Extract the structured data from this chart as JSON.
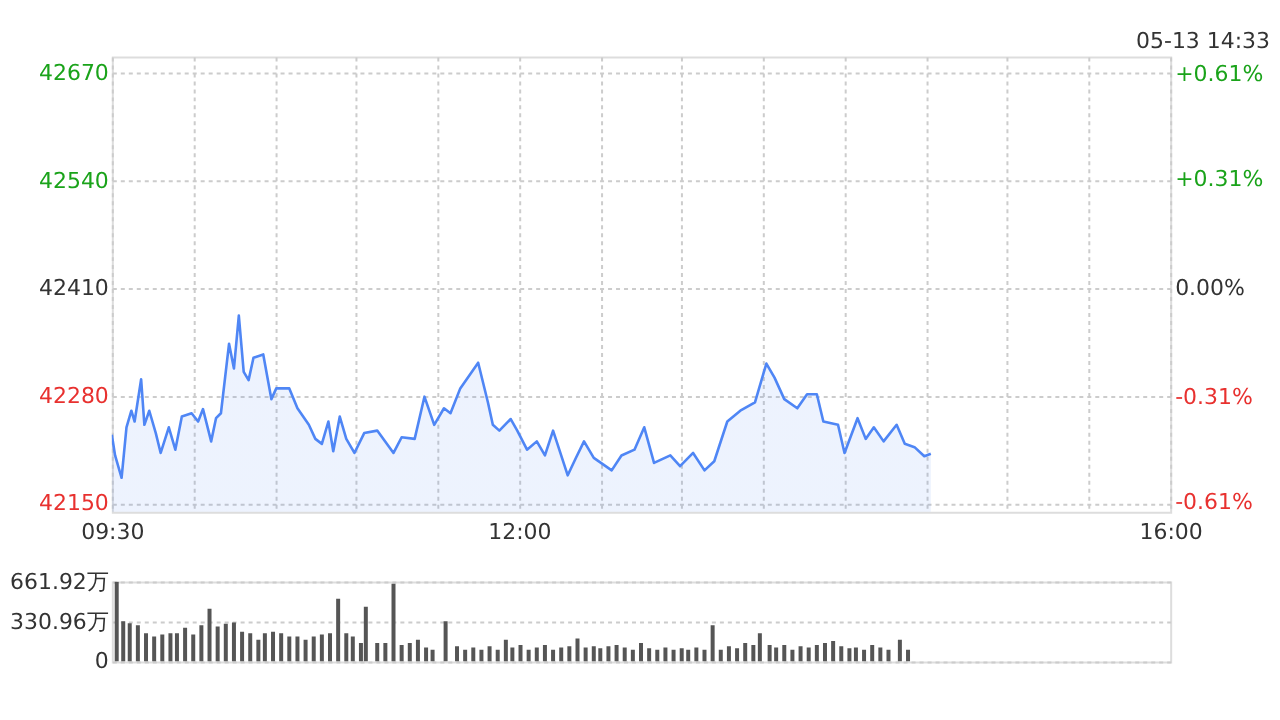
{
  "chart_data": [
    {
      "type": "area",
      "annotations": [
        "05-13 14:33"
      ],
      "xlim": [
        9.5,
        16
      ],
      "xticks": [
        {
          "value": 9.5,
          "label": "09:30"
        },
        {
          "value": 10,
          "label": null
        },
        {
          "value": 10.5,
          "label": null
        },
        {
          "value": 11,
          "label": null
        },
        {
          "value": 11.5,
          "label": null
        },
        {
          "value": 12,
          "label": "12:00"
        },
        {
          "value": 12.5,
          "label": null
        },
        {
          "value": 13,
          "label": null
        },
        {
          "value": 13.5,
          "label": null
        },
        {
          "value": 14,
          "label": null
        },
        {
          "value": 14.5,
          "label": null
        },
        {
          "value": 15,
          "label": null
        },
        {
          "value": 15.5,
          "label": null
        },
        {
          "value": 16,
          "label": "16:00"
        }
      ],
      "ylim": [
        42140,
        42690
      ],
      "yticks": [
        42150,
        42280,
        42410,
        42540,
        42670
      ],
      "y2lim": [
        -0.637,
        0.66
      ],
      "y2ticks": [
        {
          "value": -0.61,
          "label": "-0.61%"
        },
        {
          "value": -0.31,
          "label": "-0.31%"
        },
        {
          "value": 0,
          "label": "0.00%"
        },
        {
          "value": 0.31,
          "label": "+0.31%"
        },
        {
          "value": 0.61,
          "label": "+0.61%"
        }
      ],
      "grid": true,
      "series": [
        {
          "color": "#4f86f5",
          "x": [
            9.5,
            9.52,
            9.56,
            9.59,
            9.62,
            9.64,
            9.68,
            9.7,
            9.73,
            9.77,
            9.8,
            9.85,
            9.89,
            9.93,
            9.99,
            10.03,
            10.06,
            10.11,
            10.14,
            10.17,
            10.22,
            10.25,
            10.28,
            10.31,
            10.34,
            10.37,
            10.43,
            10.48,
            10.51,
            10.59,
            10.64,
            10.71,
            10.75,
            10.79,
            10.83,
            10.86,
            10.9,
            10.94,
            10.99,
            11.05,
            11.13,
            11.23,
            11.28,
            11.36,
            11.42,
            11.48,
            11.54,
            11.58,
            11.64,
            11.75,
            11.81,
            11.84,
            11.88,
            11.95,
            11.99,
            12.05,
            12.11,
            12.16,
            12.21,
            12.3,
            12.35,
            12.4,
            12.46,
            12.57,
            12.63,
            12.71,
            12.77,
            12.83,
            12.93,
            12.99,
            13.07,
            13.14,
            13.2,
            13.28,
            13.36,
            13.45,
            13.52,
            13.57,
            13.63,
            13.71,
            13.77,
            13.83,
            13.87,
            13.96,
            14.0,
            14.08,
            14.13,
            14.18,
            14.24,
            14.32,
            14.37,
            14.43,
            14.49,
            14.53
          ],
          "values": [
            42233,
            42208,
            42181,
            42242,
            42262,
            42249,
            42300,
            42245,
            42262,
            42235,
            42211,
            42242,
            42215,
            42255,
            42259,
            42249,
            42264,
            42225,
            42253,
            42259,
            42343,
            42313,
            42377,
            42309,
            42299,
            42326,
            42330,
            42276,
            42289,
            42289,
            42265,
            42245,
            42228,
            42222,
            42249,
            42213,
            42255,
            42228,
            42211,
            42235,
            42238,
            42211,
            42230,
            42228,
            42279,
            42245,
            42265,
            42259,
            42289,
            42320,
            42272,
            42245,
            42238,
            42252,
            42238,
            42215,
            42225,
            42208,
            42238,
            42184,
            42205,
            42225,
            42205,
            42190,
            42208,
            42215,
            42242,
            42199,
            42208,
            42195,
            42211,
            42190,
            42201,
            42249,
            42262,
            42272,
            42319,
            42302,
            42276,
            42265,
            42282,
            42282,
            42249,
            42245,
            42211,
            42253,
            42228,
            42242,
            42225,
            42245,
            42222,
            42218,
            42207,
            42210
          ]
        }
      ]
    },
    {
      "type": "bar",
      "xlim": [
        9.5,
        16
      ],
      "ylim": [
        0,
        661.92
      ],
      "yticks": [
        0,
        {
          "value": 330.96,
          "label": "330.96万"
        },
        {
          "value": 661.92,
          "label": "661.92万"
        }
      ],
      "grid": "y",
      "tick_labels": "y",
      "series": [
        {
          "color": "#555555",
          "x": [
            9.53,
            9.57,
            9.61,
            9.66,
            9.71,
            9.76,
            9.81,
            9.86,
            9.9,
            9.95,
            10.0,
            10.05,
            10.1,
            10.15,
            10.2,
            10.25,
            10.3,
            10.35,
            10.4,
            10.44,
            10.49,
            10.54,
            10.59,
            10.64,
            10.69,
            10.74,
            10.79,
            10.84,
            10.89,
            10.94,
            10.98,
            11.03,
            11.06,
            11.13,
            11.18,
            11.23,
            11.28,
            11.33,
            11.38,
            11.43,
            11.47,
            11.55,
            11.62,
            11.67,
            11.72,
            11.77,
            11.82,
            11.87,
            11.92,
            11.96,
            12.01,
            12.06,
            12.11,
            12.16,
            12.21,
            12.26,
            12.31,
            12.36,
            12.41,
            12.46,
            12.5,
            12.55,
            12.6,
            12.65,
            12.7,
            12.75,
            12.8,
            12.85,
            12.9,
            12.95,
            13.0,
            13.04,
            13.09,
            13.14,
            13.19,
            13.24,
            13.29,
            13.34,
            13.39,
            13.44,
            13.48,
            13.54,
            13.58,
            13.63,
            13.68,
            13.73,
            13.78,
            13.83,
            13.88,
            13.93,
            13.98,
            14.03,
            14.07,
            14.12,
            14.17,
            14.22,
            14.27,
            14.34,
            14.39
          ],
          "values": [
            660,
            334,
            317,
            301,
            235,
            208,
            224,
            235,
            235,
            279,
            224,
            301,
            438,
            290,
            312,
            323,
            246,
            235,
            181,
            235,
            246,
            235,
            208,
            208,
            181,
            208,
            224,
            235,
            520,
            235,
            208,
            153,
            454,
            153,
            153,
            645,
            137,
            153,
            181,
            115,
            98,
            334,
            126,
            98,
            115,
            98,
            126,
            98,
            181,
            115,
            137,
            98,
            115,
            137,
            98,
            115,
            126,
            191,
            115,
            126,
            109,
            126,
            137,
            115,
            98,
            153,
            109,
            98,
            115,
            98,
            109,
            98,
            115,
            98,
            301,
            98,
            126,
            109,
            153,
            137,
            235,
            137,
            115,
            137,
            98,
            126,
            115,
            137,
            153,
            170,
            126,
            109,
            115,
            98,
            137,
            115,
            98,
            181,
            98
          ]
        }
      ]
    }
  ]
}
